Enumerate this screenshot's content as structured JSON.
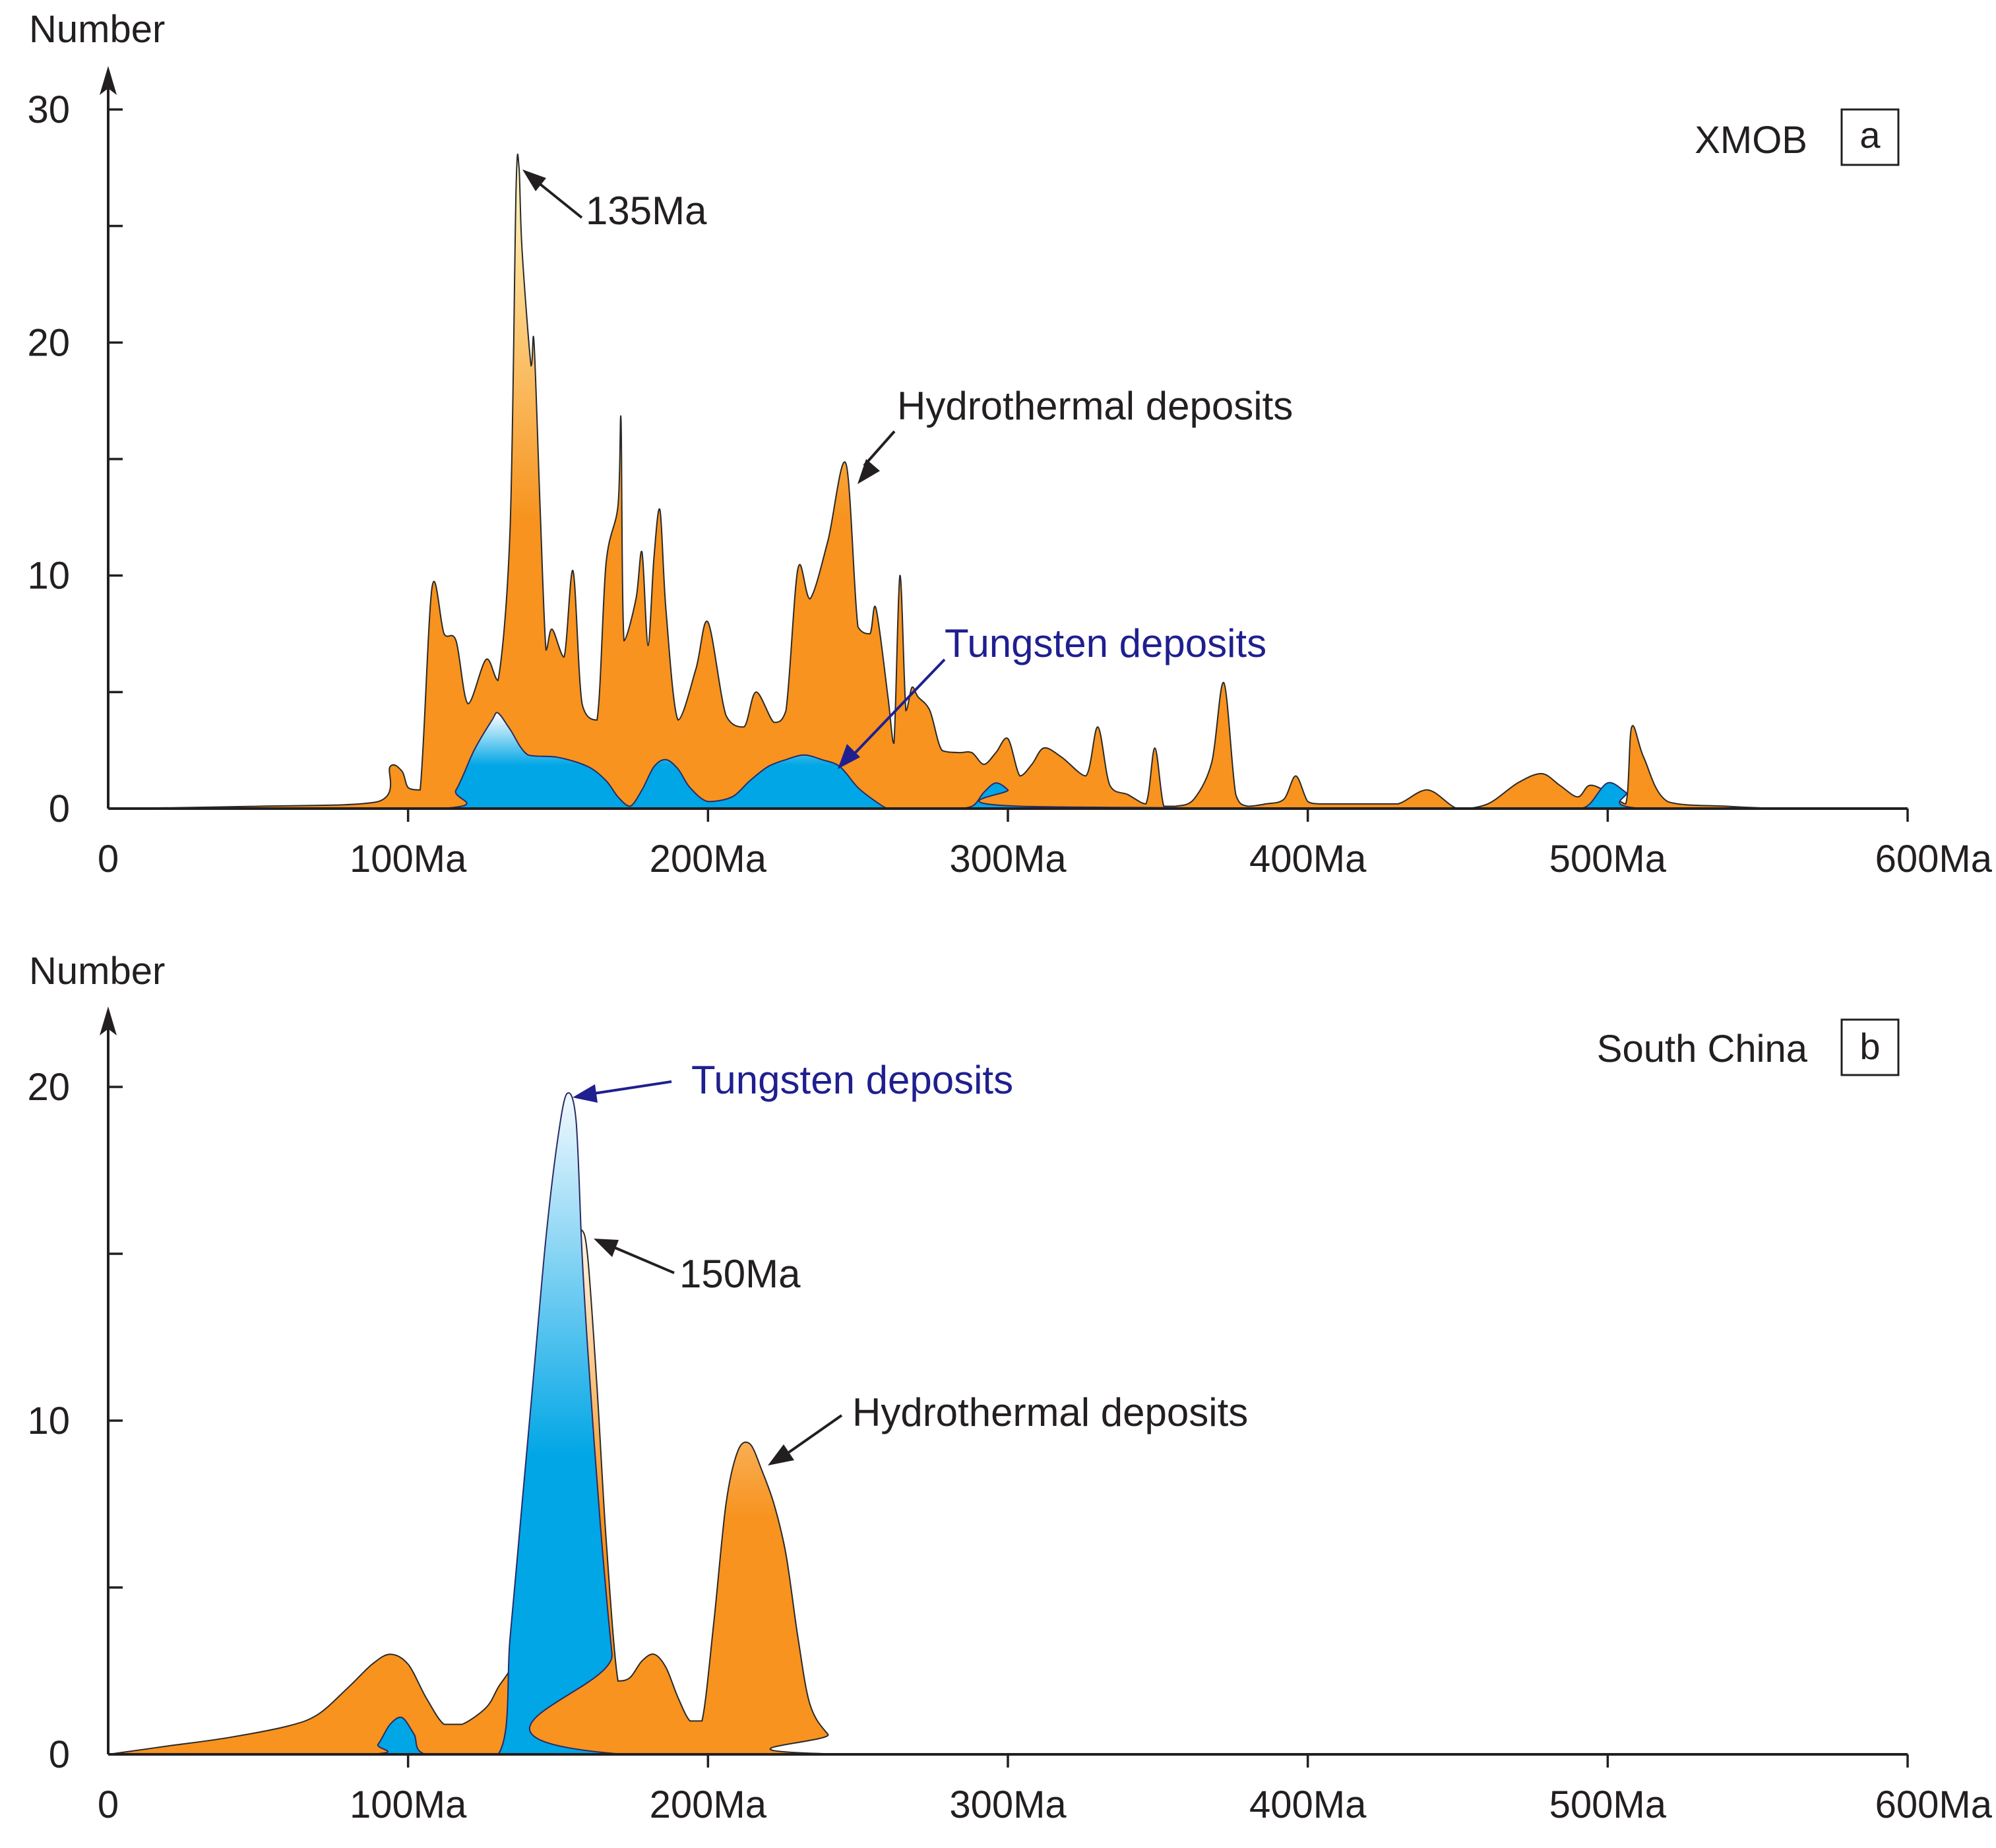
{
  "chart_data": [
    {
      "type": "area",
      "panel_label": "a",
      "region": "XMOB",
      "ylabel": "Number",
      "ylim": [
        0,
        30
      ],
      "xlim": [
        0,
        600
      ],
      "x_ticks": [
        0,
        100,
        200,
        300,
        400,
        500,
        600
      ],
      "x_tick_labels": [
        "0",
        "100Ma",
        "200Ma",
        "300Ma",
        "400Ma",
        "500Ma",
        "600Ma"
      ],
      "y_ticks": [
        0,
        10,
        20,
        30
      ],
      "y_tick_labels": [
        "0",
        "10",
        "20",
        "30"
      ],
      "y_minor_ticks": [
        5,
        15,
        25
      ],
      "grid": false,
      "series": [
        {
          "name": "Hydrothermal deposits",
          "color": "#f7931e",
          "peak_color": "#fff8c4",
          "x": [
            0,
            50,
            90,
            94,
            98,
            100,
            104,
            108,
            112,
            116,
            120,
            126,
            130,
            134,
            136,
            137,
            138,
            141,
            142,
            144,
            146,
            148,
            152,
            155,
            158,
            163,
            166,
            170,
            171,
            172,
            176,
            178,
            180,
            182,
            184,
            186,
            190,
            196,
            200,
            206,
            212,
            216,
            222,
            226,
            230,
            234,
            240,
            246,
            250,
            254,
            256,
            260,
            262,
            264,
            266,
            268,
            270,
            274,
            278,
            284,
            288,
            292,
            296,
            300,
            304,
            308,
            312,
            318,
            326,
            330,
            334,
            340,
            346,
            349,
            352,
            356,
            362,
            368,
            372,
            376,
            380,
            386,
            392,
            396,
            400,
            404,
            410,
            420,
            430,
            440,
            450,
            460,
            470,
            478,
            484,
            490,
            494,
            500,
            506,
            508,
            512,
            520,
            540,
            560,
            600
          ],
          "values": [
            0,
            0.1,
            0.3,
            1.8,
            1.6,
            0.9,
            0.8,
            9.5,
            7.5,
            7.2,
            4.5,
            6.4,
            5.5,
            12,
            26.5,
            27.5,
            24,
            19,
            20,
            13,
            6.8,
            7.7,
            6.5,
            10.2,
            4.5,
            3.8,
            10.5,
            13,
            16.7,
            7.2,
            9,
            11,
            7,
            10.8,
            12.8,
            8.5,
            3.8,
            6,
            8,
            4,
            3.5,
            5,
            3.7,
            4.2,
            10.3,
            9,
            11.5,
            14.8,
            7.8,
            7.5,
            8.6,
            4.8,
            2.8,
            10,
            4.2,
            5.2,
            4.8,
            4.2,
            2.5,
            2.4,
            2.4,
            1.9,
            2.4,
            3,
            1.4,
            1.9,
            2.6,
            2.2,
            1.4,
            3.5,
            1,
            0.6,
            0.2,
            2.6,
            0.1,
            0.1,
            0.4,
            2,
            5.4,
            0.6,
            0.1,
            0.2,
            0.4,
            1.4,
            0.3,
            0.2,
            0.2,
            0.2,
            0.2,
            0.8,
            0,
            0.2,
            1.1,
            1.5,
            1,
            0.5,
            1,
            0.7,
            0.2,
            3.5,
            2.2,
            0.3,
            0.1,
            0,
            0
          ]
        },
        {
          "name": "Tungsten deposits",
          "color": "#00a6e6",
          "peak_color": "#ffffff",
          "x": [
            0,
            110,
            116,
            122,
            128,
            130,
            134,
            140,
            150,
            160,
            166,
            170,
            174,
            178,
            182,
            186,
            190,
            194,
            200,
            208,
            214,
            220,
            226,
            232,
            238,
            244,
            250,
            256,
            260,
            264,
            280,
            288,
            292,
            296,
            300,
            304,
            480,
            490,
            494,
            500,
            506,
            512,
            600
          ],
          "values": [
            0,
            0,
            0.8,
            2.5,
            3.8,
            4.1,
            3.4,
            2.3,
            2.2,
            1.8,
            1.2,
            0.5,
            0.1,
            0.8,
            1.8,
            2.1,
            1.7,
            0.9,
            0.3,
            0.5,
            1.2,
            1.8,
            2.1,
            2.3,
            2.1,
            1.8,
            0.9,
            0.3,
            0,
            0,
            0,
            0.1,
            0.7,
            1.1,
            0.8,
            0.1,
            0,
            0,
            0.2,
            1.1,
            0.7,
            0,
            0
          ]
        }
      ],
      "annotations": [
        {
          "text": "135Ma",
          "x": 137,
          "y": 27.5
        },
        {
          "text": "Hydrothermal deposits",
          "x": 250,
          "y": 14
        },
        {
          "text": "Tungsten deposits",
          "x": 242,
          "y": 2
        }
      ]
    },
    {
      "type": "area",
      "panel_label": "b",
      "region": "South China",
      "ylabel": "Number",
      "ylim": [
        0,
        20
      ],
      "xlim": [
        0,
        600
      ],
      "x_ticks": [
        0,
        100,
        200,
        300,
        400,
        500,
        600
      ],
      "x_tick_labels": [
        "0",
        "100Ma",
        "200Ma",
        "300Ma",
        "400Ma",
        "500Ma",
        "600Ma"
      ],
      "y_ticks": [
        0,
        10,
        20
      ],
      "y_tick_labels": [
        "0",
        "10",
        "20"
      ],
      "y_minor_ticks": [
        5,
        15
      ],
      "grid": false,
      "series": [
        {
          "name": "Hydrothermal deposits",
          "color": "#f7931e",
          "peak_color": "#fff7e8",
          "x": [
            0,
            20,
            40,
            60,
            70,
            80,
            88,
            94,
            100,
            106,
            112,
            118,
            126,
            130,
            136,
            140,
            146,
            150,
            155,
            158,
            160,
            163,
            166,
            170,
            174,
            178,
            182,
            186,
            190,
            194,
            198,
            202,
            206,
            210,
            214,
            218,
            222,
            226,
            230,
            234,
            240,
            248,
            600
          ],
          "values": [
            0,
            0.25,
            0.5,
            0.85,
            1.2,
            2,
            2.7,
            3,
            2.7,
            1.7,
            0.9,
            0.9,
            1.4,
            2,
            3,
            5.5,
            10,
            13.5,
            15.3,
            15.7,
            14.8,
            11,
            6.5,
            2.2,
            2.3,
            2.8,
            3,
            2.6,
            1.7,
            1,
            1,
            4,
            7.5,
            9.1,
            9.3,
            8.5,
            7.5,
            6,
            3.5,
            1.5,
            0.6,
            0,
            0
          ]
        },
        {
          "name": "Tungsten deposits",
          "color": "#00a6e6",
          "peak_color": "#f2f9ff",
          "x": [
            0,
            86,
            90,
            94,
            98,
            102,
            106,
            130,
            134,
            138,
            142,
            146,
            150,
            153,
            156,
            158,
            160,
            164,
            168,
            172,
            600
          ],
          "values": [
            0,
            0,
            0.3,
            0.9,
            1.1,
            0.6,
            0,
            0,
            3.5,
            7.5,
            11.5,
            15.5,
            18.5,
            19.8,
            19,
            15,
            12,
            7,
            3,
            0,
            0
          ]
        }
      ],
      "annotations": [
        {
          "text": "Tungsten deposits",
          "x": 154,
          "y": 20
        },
        {
          "text": "150Ma",
          "x": 160,
          "y": 15.7
        },
        {
          "text": "Hydrothermal deposits",
          "x": 218,
          "y": 9
        }
      ]
    }
  ]
}
